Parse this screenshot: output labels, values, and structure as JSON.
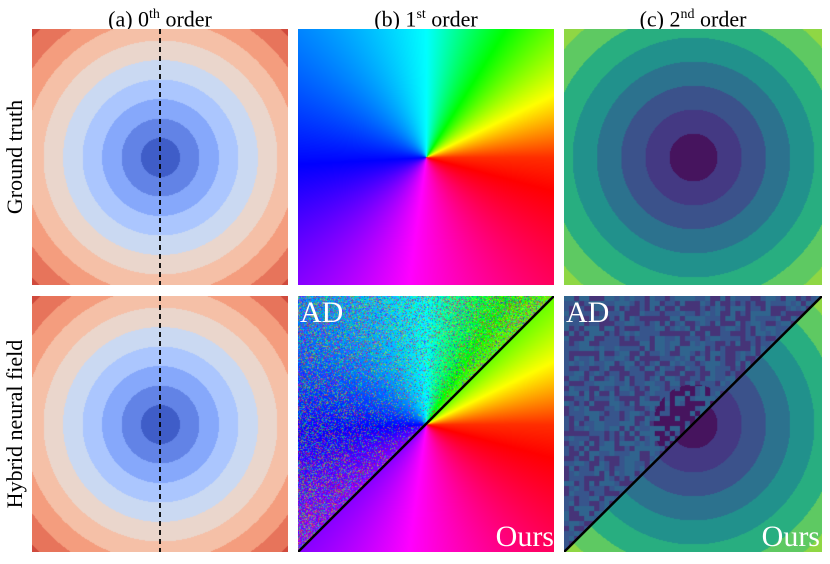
{
  "columns": [
    {
      "prefix": "(a) 0",
      "sup": "th",
      "suffix": " order"
    },
    {
      "prefix": "(b) 1",
      "sup": "st",
      "suffix": " order"
    },
    {
      "prefix": "(c) 2",
      "sup": "nd",
      "suffix": " order"
    }
  ],
  "rows": [
    {
      "label": "Ground truth"
    },
    {
      "label": "Hybrid neural field"
    }
  ],
  "labels": {
    "ad": "AD",
    "ours": "Ours"
  },
  "colors": {
    "coolwarm_rings": [
      "#3f5dc8",
      "#6283e6",
      "#86a8fb",
      "#abc6fe",
      "#cad9f2",
      "#ead6cc",
      "#f5c0a7",
      "#f49d7e",
      "#e7745b",
      "#d04a3c"
    ],
    "viridis_rings": [
      "#46145e",
      "#443983",
      "#3b528b",
      "#2c728e",
      "#21918c",
      "#28ae80",
      "#5ec962",
      "#8fd744"
    ],
    "divider": "#000000"
  }
}
